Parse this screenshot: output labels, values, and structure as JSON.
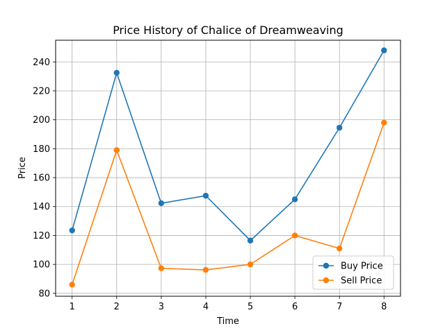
{
  "chart_data": {
    "type": "line",
    "title": "Price History of Chalice of Dreamweaving",
    "xlabel": "Time",
    "ylabel": "Price",
    "x": [
      1,
      2,
      3,
      4,
      5,
      6,
      7,
      8
    ],
    "xticks": [
      "1",
      "2",
      "3",
      "4",
      "5",
      "6",
      "7",
      "8"
    ],
    "yticks": [
      "80",
      "100",
      "120",
      "140",
      "160",
      "180",
      "200",
      "220",
      "240"
    ],
    "xlim": [
      0.63,
      8.37
    ],
    "ylim": [
      78,
      255
    ],
    "grid": true,
    "legend_position": "bottom-right",
    "series": [
      {
        "name": "Buy Price",
        "color": "#1f77b4",
        "values": [
          123.5,
          232.5,
          142.3,
          147.5,
          116.5,
          145.0,
          194.5,
          248.0
        ]
      },
      {
        "name": "Sell Price",
        "color": "#ff7f0e",
        "values": [
          86.0,
          179.0,
          97.3,
          96.2,
          100.0,
          120.0,
          111.0,
          198.0
        ]
      }
    ]
  }
}
